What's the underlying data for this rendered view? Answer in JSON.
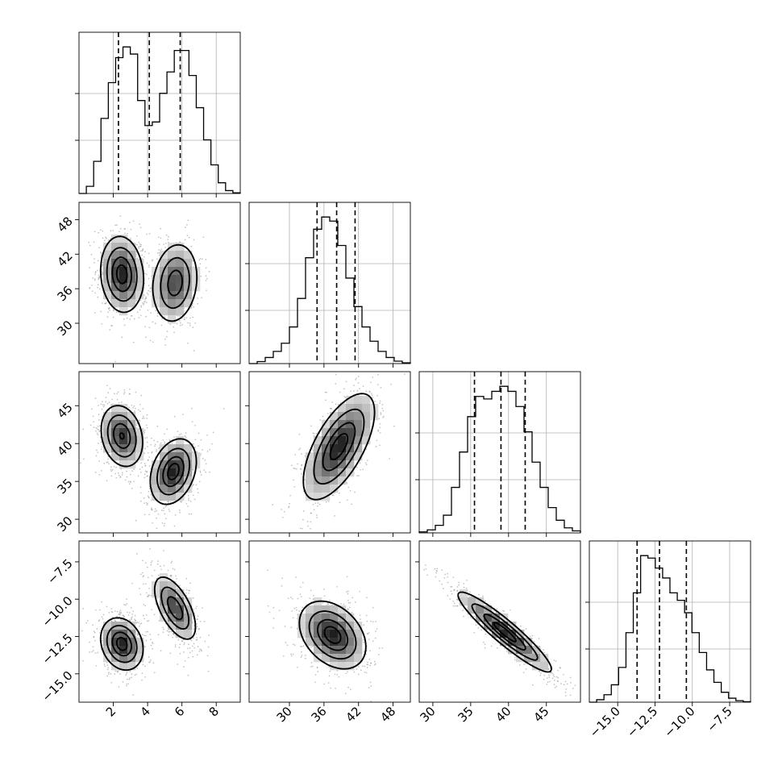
{
  "chart_data": {
    "type": "corner",
    "parameters": [
      {
        "range": [
          0.0,
          9.4
        ],
        "ticks": [
          2,
          4,
          6,
          8
        ],
        "tick_labels": [
          "2",
          "4",
          "6",
          "8"
        ],
        "quantiles": [
          2.3,
          4.1,
          5.9
        ],
        "hist_bins": [
          0.0,
          0.2,
          0.9,
          2.1,
          3.1,
          3.8,
          4.1,
          3.9,
          2.6,
          1.9,
          2.0,
          2.8,
          3.4,
          4.0,
          4.0,
          3.3,
          2.4,
          1.5,
          0.8,
          0.3,
          0.08,
          0.02
        ]
      },
      {
        "range": [
          23.0,
          51.0
        ],
        "ticks": [
          30,
          36,
          42,
          48
        ],
        "tick_labels": [
          "30",
          "36",
          "42",
          "48"
        ],
        "quantiles": [
          34.8,
          38.2,
          41.4
        ],
        "hist_bins": [
          0.0,
          0.05,
          0.15,
          0.3,
          0.5,
          0.9,
          1.6,
          2.6,
          3.3,
          3.6,
          3.5,
          2.9,
          2.1,
          1.4,
          0.9,
          0.55,
          0.3,
          0.15,
          0.06,
          0.02
        ]
      },
      {
        "range": [
          28.2,
          49.5
        ],
        "ticks": [
          30,
          35,
          40,
          45
        ],
        "tick_labels": [
          "30",
          "35",
          "40",
          "45"
        ],
        "quantiles": [
          35.5,
          39.0,
          42.2
        ],
        "hist_bins": [
          0.02,
          0.06,
          0.15,
          0.35,
          0.9,
          1.6,
          2.3,
          2.7,
          2.65,
          2.8,
          2.9,
          2.8,
          2.5,
          2.0,
          1.4,
          0.9,
          0.5,
          0.25,
          0.1,
          0.04
        ]
      },
      {
        "range": [
          -16.9,
          -6.1
        ],
        "ticks": [
          -15.0,
          -12.5,
          -10.0,
          -7.5
        ],
        "tick_labels": [
          "−15.0",
          "−12.5",
          "−10.0",
          "−7.5"
        ],
        "quantiles": [
          -13.7,
          -12.2,
          -10.4
        ],
        "hist_bins": [
          0.0,
          0.05,
          0.15,
          0.35,
          0.7,
          1.4,
          2.2,
          2.95,
          2.9,
          2.7,
          2.5,
          2.2,
          2.05,
          1.8,
          1.4,
          1.0,
          0.65,
          0.4,
          0.2,
          0.08,
          0.03,
          0.01
        ]
      }
    ],
    "pairs": [
      {
        "x": 0,
        "y": 1,
        "modes": [
          {
            "cx": 2.5,
            "cy": 38.5,
            "sx": 0.6,
            "sy": 3.2,
            "rho": -0.1,
            "peak": 1.0
          },
          {
            "cx": 5.6,
            "cy": 37.0,
            "sx": 0.65,
            "sy": 3.4,
            "rho": 0.15,
            "peak": 0.8
          }
        ]
      },
      {
        "x": 0,
        "y": 2,
        "modes": [
          {
            "cx": 2.5,
            "cy": 41.0,
            "sx": 0.6,
            "sy": 2.0,
            "rho": -0.2,
            "peak": 0.9
          },
          {
            "cx": 5.5,
            "cy": 36.3,
            "sx": 0.65,
            "sy": 2.1,
            "rho": 0.3,
            "peak": 1.0
          }
        ]
      },
      {
        "x": 0,
        "y": 3,
        "modes": [
          {
            "cx": 2.5,
            "cy": -13.0,
            "sx": 0.6,
            "sy": 0.85,
            "rho": -0.2,
            "peak": 1.0
          },
          {
            "cx": 5.6,
            "cy": -10.6,
            "sx": 0.6,
            "sy": 1.05,
            "rho": -0.6,
            "peak": 0.85
          }
        ]
      },
      {
        "x": 1,
        "y": 2,
        "modes": [
          {
            "cx": 38.6,
            "cy": 39.6,
            "sx": 3.0,
            "sy": 3.4,
            "rho": 0.65,
            "peak": 1.0
          }
        ]
      },
      {
        "x": 1,
        "y": 3,
        "modes": [
          {
            "cx": 37.5,
            "cy": -12.4,
            "sx": 2.8,
            "sy": 1.1,
            "rho": -0.35,
            "peak": 1.0
          }
        ]
      },
      {
        "x": 2,
        "y": 3,
        "modes": [
          {
            "cx": 39.5,
            "cy": -12.2,
            "sx": 3.0,
            "sy": 1.3,
            "rho": -0.93,
            "peak": 1.0
          }
        ]
      }
    ],
    "contour_levels": [
      0.12,
      0.35,
      0.65,
      0.88
    ],
    "grid": true,
    "title": "",
    "xlabel": "",
    "ylabel": ""
  }
}
